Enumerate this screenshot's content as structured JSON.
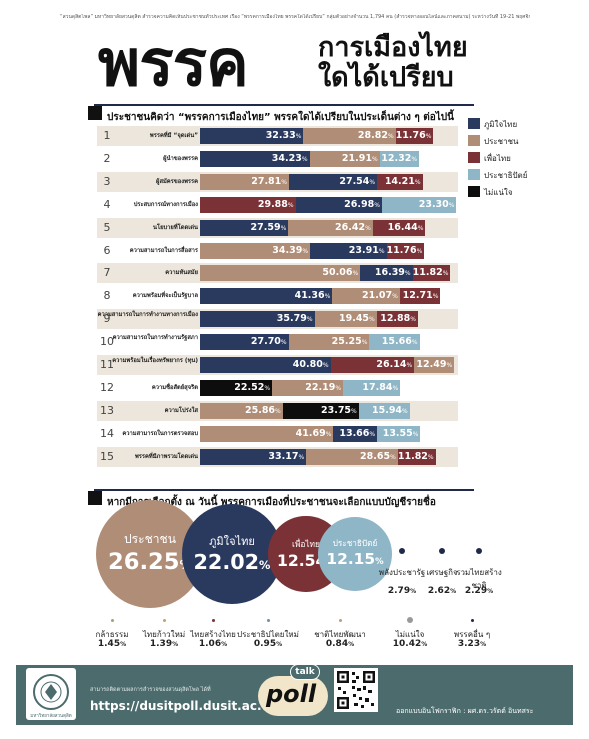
{
  "header": {
    "intro": "“สวนดุสิตโพล” มหาวิทยาลัยสวนดุสิต สำรวจความคิดเห็นประชาชนทั่วประเทศ เรื่อง “พรรคการเมืองไทย พรรคใดได้เปรียบ” กลุ่มตัวอย่างจำนวน 1,794 คน (สำรวจทางออนไลน์และภาคสนาม) ระหว่างวันที่ 19-21 พฤศจิกายน 2568 สรุปผลได้ ดังนี้",
    "title_big": "พรรค",
    "title_line1": "การเมืองไทย",
    "title_line2": "ใดได้เปรียบ"
  },
  "question1": "ประชาชนคิดว่า “พรรคการเมืองไทย” พรรคใดได้เปรียบในประเด็นต่าง ๆ ต่อไปนี้",
  "question2": "หากมีการเลือกตั้ง ณ วันนี้ พรรคการเมืองที่ประชาชนจะเลือกแบบบัญชีรายชื่อ",
  "colors": {
    "ภูมิใจไทย": "#2a3a5f",
    "ประชาชน": "#b08d76",
    "เพื่อไทย": "#7a3236",
    "ประชาธิปัตย์": "#8fb6c6",
    "ไม่แน่ใจ": "#0d0d0d"
  },
  "chart_data": [
    {
      "type": "bar",
      "orientation": "horizontal-stacked",
      "title": "ประชาชนคิดว่า “พรรคการเมืองไทย” พรรคใดได้เปรียบในประเด็นต่าง ๆ ต่อไปนี้",
      "legend": [
        "ภูมิใจไทย",
        "ประชาชน",
        "เพื่อไทย",
        "ประชาธิปัตย์",
        "ไม่แน่ใจ"
      ],
      "legend_position": "right",
      "unit": "%",
      "rows": [
        {
          "no": "1",
          "label": "พรรคที่มี “จุดเด่น”",
          "segments": [
            [
              "ภูมิใจไทย",
              32.33
            ],
            [
              "ประชาชน",
              28.82
            ],
            [
              "เพื่อไทย",
              11.76
            ]
          ]
        },
        {
          "no": "2",
          "label": "ผู้นำของพรรค",
          "segments": [
            [
              "ภูมิใจไทย",
              34.23
            ],
            [
              "ประชาชน",
              21.91
            ],
            [
              "ประชาธิปัตย์",
              12.32
            ]
          ]
        },
        {
          "no": "3",
          "label": "ผู้สมัครของพรรค",
          "segments": [
            [
              "ประชาชน",
              27.81
            ],
            [
              "ภูมิใจไทย",
              27.54
            ],
            [
              "เพื่อไทย",
              14.21
            ]
          ]
        },
        {
          "no": "4",
          "label": "ประสบการณ์ทางการเมือง",
          "segments": [
            [
              "เพื่อไทย",
              29.88
            ],
            [
              "ภูมิใจไทย",
              26.98
            ],
            [
              "ประชาธิปัตย์",
              23.3
            ]
          ]
        },
        {
          "no": "5",
          "label": "นโยบายที่โดดเด่น",
          "segments": [
            [
              "ภูมิใจไทย",
              27.59
            ],
            [
              "ประชาชน",
              26.42
            ],
            [
              "เพื่อไทย",
              16.44
            ]
          ]
        },
        {
          "no": "6",
          "label": "ความสามารถในการสื่อสาร",
          "segments": [
            [
              "ประชาชน",
              34.39
            ],
            [
              "ภูมิใจไทย",
              23.91
            ],
            [
              "เพื่อไทย",
              11.76
            ]
          ]
        },
        {
          "no": "7",
          "label": "ความทันสมัย",
          "segments": [
            [
              "ประชาชน",
              50.06
            ],
            [
              "ภูมิใจไทย",
              16.39
            ],
            [
              "เพื่อไทย",
              11.82
            ]
          ]
        },
        {
          "no": "8",
          "label": "ความพร้อมที่จะเป็นรัฐบาล",
          "segments": [
            [
              "ภูมิใจไทย",
              41.36
            ],
            [
              "ประชาชน",
              21.07
            ],
            [
              "เพื่อไทย",
              12.71
            ]
          ]
        },
        {
          "no": "9",
          "label": "ความสามารถในการทำงานทางการเมือง",
          "segments": [
            [
              "ภูมิใจไทย",
              35.79
            ],
            [
              "ประชาชน",
              19.45
            ],
            [
              "เพื่อไทย",
              12.88
            ]
          ]
        },
        {
          "no": "10",
          "label": "ความสามารถในการทำงานรัฐสภา",
          "segments": [
            [
              "ภูมิใจไทย",
              27.7
            ],
            [
              "ประชาชน",
              25.25
            ],
            [
              "ประชาธิปัตย์",
              15.66
            ]
          ]
        },
        {
          "no": "11",
          "label": "ความพร้อมในเรื่องทรัพยากร (ทุน)",
          "segments": [
            [
              "ภูมิใจไทย",
              40.8
            ],
            [
              "เพื่อไทย",
              26.14
            ],
            [
              "ประชาชน",
              12.49
            ]
          ]
        },
        {
          "no": "12",
          "label": "ความซื่อสัตย์สุจริต",
          "segments": [
            [
              "ไม่แน่ใจ",
              22.52
            ],
            [
              "ประชาชน",
              22.19
            ],
            [
              "ประชาธิปัตย์",
              17.84
            ]
          ]
        },
        {
          "no": "13",
          "label": "ความโปร่งใส",
          "segments": [
            [
              "ประชาชน",
              25.86
            ],
            [
              "ไม่แน่ใจ",
              23.75
            ],
            [
              "ประชาธิปัตย์",
              15.94
            ]
          ]
        },
        {
          "no": "14",
          "label": "ความสามารถในการตรวจสอบ",
          "segments": [
            [
              "ประชาชน",
              41.69
            ],
            [
              "ภูมิใจไทย",
              13.66
            ],
            [
              "ประชาธิปัตย์",
              13.55
            ]
          ]
        },
        {
          "no": "15",
          "label": "พรรคที่มีภาพรวมโดดเด่น",
          "segments": [
            [
              "ภูมิใจไทย",
              33.17
            ],
            [
              "ประชาชน",
              28.65
            ],
            [
              "เพื่อไทย",
              11.82
            ]
          ]
        }
      ]
    },
    {
      "type": "bubble",
      "title": "หากมีการเลือกตั้ง ณ วันนี้ พรรคการเมืองที่ประชาชนจะเลือกแบบบัญชีรายชื่อ",
      "unit": "%",
      "parties": [
        {
          "name": "ประชาชน",
          "value": 26.25
        },
        {
          "name": "ภูมิใจไทย",
          "value": 22.02
        },
        {
          "name": "เพื่อไทย",
          "value": 12.54
        },
        {
          "name": "ประชาธิปัตย์",
          "value": 12.15
        },
        {
          "name": "พลังประชารัฐ",
          "value": 2.79
        },
        {
          "name": "เศรษฐกิจ",
          "value": 2.62
        },
        {
          "name": "รวมไทยสร้างชาติ",
          "value": 2.29
        },
        {
          "name": "กล้าธรรม",
          "value": 1.45
        },
        {
          "name": "ไทยก้าวใหม่",
          "value": 1.39
        },
        {
          "name": "ไทยสร้างไทย",
          "value": 1.06
        },
        {
          "name": "ประชาธิปไตยใหม่",
          "value": 0.95
        },
        {
          "name": "ชาติไทยพัฒนา",
          "value": 0.84
        },
        {
          "name": "ไม่แน่ใจ",
          "value": 10.42
        },
        {
          "name": "พรรคอื่น ๆ",
          "value": 3.23
        }
      ]
    }
  ],
  "footer": {
    "org": "มหาวิทยาลัยสวนดุสิต",
    "note": "สามารถติดตามผลการสำรวจของสวนดุสิตโพล ได้ที่",
    "url": "https://dusitpoll.dusit.ac.th",
    "talk": "talk",
    "poll": "poll",
    "credit": "ออกแบบอินโฟกราฟิก : ผศ.ดร.วรัตต์ อินทสระ"
  }
}
